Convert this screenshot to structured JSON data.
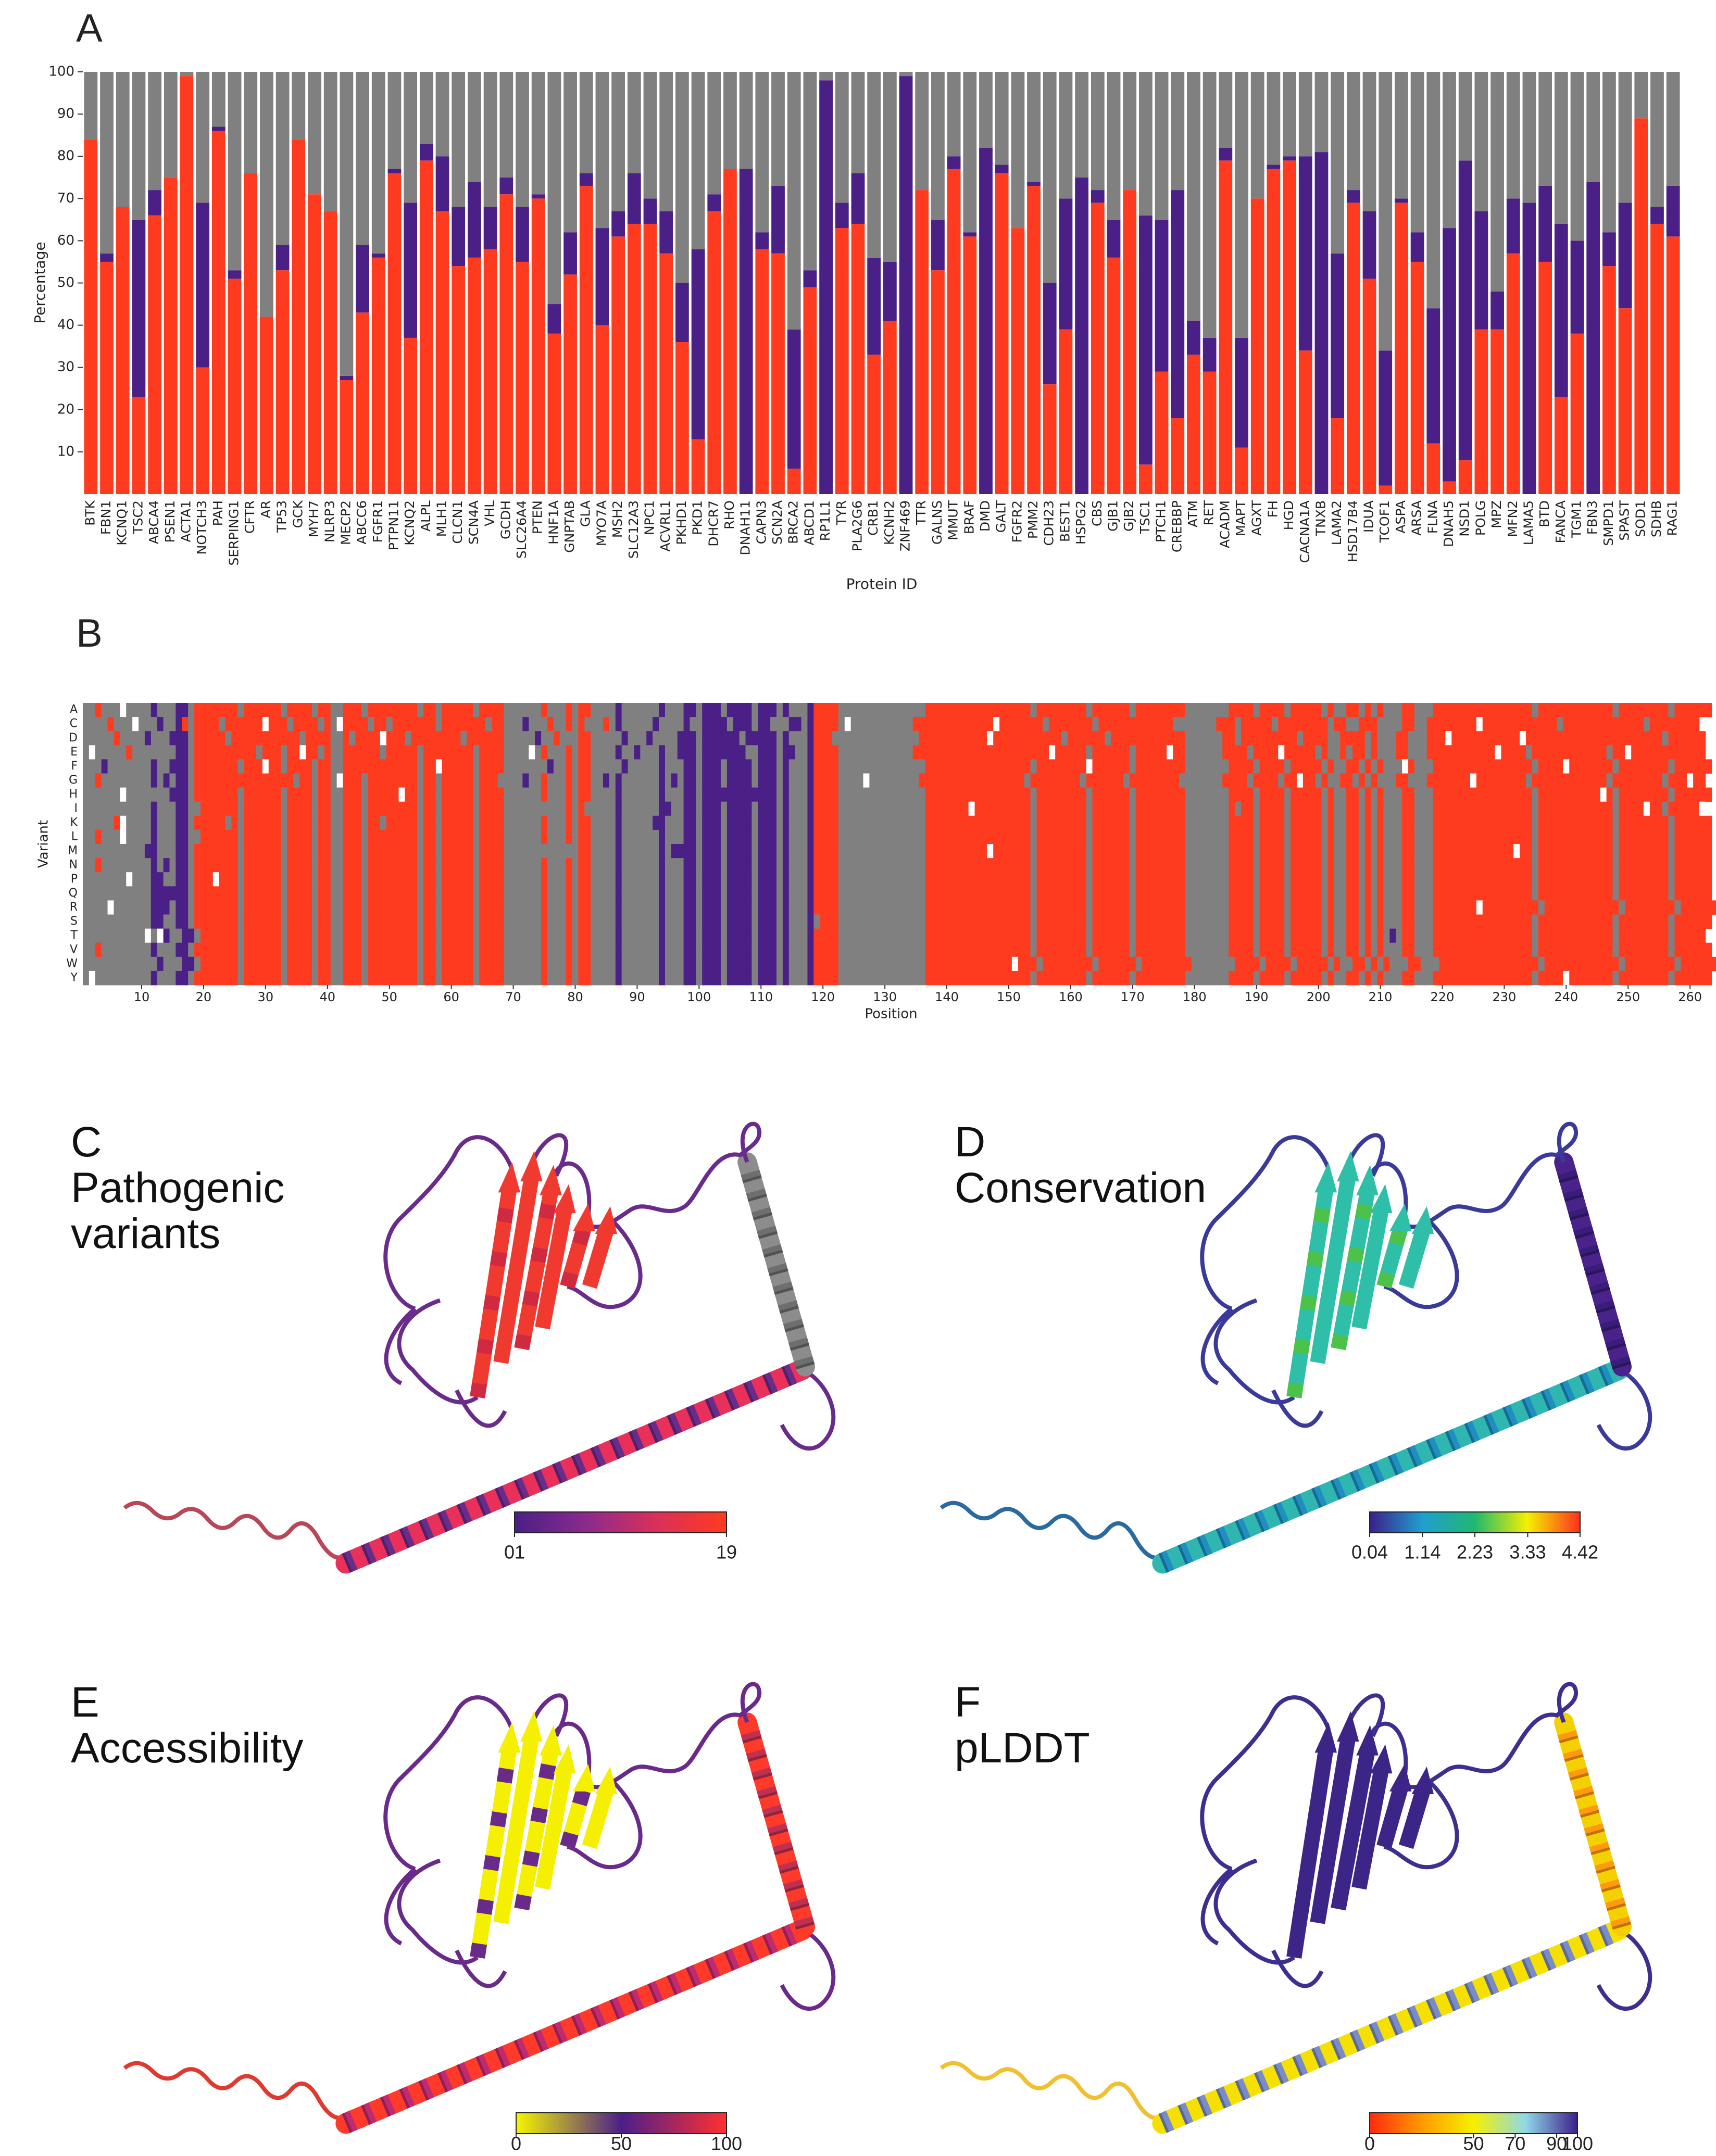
{
  "chart_data": [
    {
      "type": "bar",
      "stacked": true,
      "panel": "A",
      "ylabel": "Percentage",
      "xlabel": "Protein ID",
      "categories": [
        "BTK",
        "FBN1",
        "KCNQ1",
        "TSC2",
        "ABCA4",
        "PSEN1",
        "ACTA1",
        "NOTCH3",
        "PAH",
        "SERPING1",
        "CFTR",
        "AR",
        "TP53",
        "GCK",
        "MYH7",
        "NLRP3",
        "MECP2",
        "ABCC6",
        "FGFR1",
        "PTPN11",
        "KCNQ2",
        "ALPL",
        "MLH1",
        "CLCN1",
        "SCN4A",
        "VHL",
        "GCDH",
        "SLC26A4",
        "PTEN",
        "HNF1A",
        "GNPTAB",
        "GLA",
        "MYO7A",
        "MSH2",
        "SLC12A3",
        "NPC1",
        "ACVRL1",
        "PKHD1",
        "PKD1",
        "DHCR7",
        "RHO",
        "DNAH11",
        "CAPN3",
        "SCN2A",
        "BRCA2",
        "ABCD1",
        "RP1L1",
        "TYR",
        "PLA2G6",
        "CRB1",
        "KCNH2",
        "ZNF469",
        "TTR",
        "GALNS",
        "MMUT",
        "BRAF",
        "DMD",
        "GALT",
        "FGFR2",
        "PMM2",
        "CDH23",
        "BEST1",
        "HSPG2",
        "CBS",
        "GJB1",
        "GJB2",
        "TSC1",
        "PTCH1",
        "CREBBP",
        "ATM",
        "RET",
        "ACADM",
        "MAPT",
        "AGXT",
        "FH",
        "HGD",
        "CACNA1A",
        "TNXB",
        "LAMA2",
        "HSD17B4",
        "IDUA",
        "TCOF1",
        "ASPA",
        "ARSA",
        "FLNA",
        "DNAH5",
        "NSD1",
        "POLG",
        "MPZ",
        "MFN2",
        "LAMA5",
        "BTD",
        "FANCA",
        "TGM1",
        "FBN3",
        "SMPD1",
        "SPAST",
        "SOD1",
        "SDHB",
        "RAG1"
      ],
      "series": [
        {
          "color": "#ff3b1f",
          "values": [
            84,
            55,
            68,
            23,
            66,
            75,
            99,
            30,
            86,
            51,
            76,
            42,
            53,
            84,
            71,
            67,
            27,
            43,
            56,
            76,
            37,
            79,
            67,
            54,
            56,
            58,
            71,
            55,
            70,
            38,
            52,
            73,
            40,
            61,
            64,
            64,
            57,
            36,
            13,
            67,
            77,
            0,
            58,
            57,
            6,
            49,
            0,
            63,
            64,
            33,
            41,
            0,
            72,
            53,
            77,
            61,
            0,
            76,
            63,
            73,
            26,
            39,
            0,
            69,
            56,
            72,
            7,
            29,
            18,
            33,
            29,
            79,
            11,
            70,
            77,
            79,
            34,
            0,
            18,
            69,
            51,
            2,
            69,
            55,
            12,
            3,
            8,
            39,
            39,
            57,
            0,
            55,
            23,
            38,
            0,
            54,
            44,
            89,
            64,
            61
          ]
        },
        {
          "color": "#4a1f86",
          "values": [
            0,
            2,
            0,
            42,
            6,
            0,
            0,
            39,
            1,
            2,
            0,
            0,
            6,
            0,
            0,
            0,
            1,
            16,
            1,
            1,
            32,
            4,
            13,
            14,
            18,
            10,
            4,
            13,
            1,
            7,
            10,
            3,
            23,
            6,
            12,
            6,
            10,
            14,
            45,
            4,
            0,
            77,
            4,
            16,
            33,
            4,
            98,
            6,
            12,
            23,
            14,
            99,
            0,
            12,
            3,
            1,
            82,
            2,
            0,
            1,
            24,
            31,
            75,
            3,
            9,
            0,
            59,
            36,
            54,
            8,
            8,
            3,
            26,
            0,
            1,
            1,
            46,
            81,
            39,
            3,
            16,
            32,
            1,
            7,
            32,
            60,
            71,
            28,
            9,
            13,
            69,
            18,
            41,
            22,
            74,
            8,
            25,
            0,
            4,
            12
          ]
        },
        {
          "color": "#808080",
          "values": [
            16,
            43,
            32,
            35,
            28,
            25,
            1,
            31,
            13,
            47,
            24,
            58,
            41,
            16,
            29,
            33,
            72,
            41,
            43,
            23,
            31,
            17,
            20,
            32,
            26,
            32,
            25,
            32,
            29,
            55,
            38,
            24,
            37,
            33,
            24,
            30,
            33,
            50,
            42,
            29,
            23,
            23,
            38,
            27,
            61,
            47,
            2,
            31,
            24,
            44,
            45,
            1,
            28,
            35,
            20,
            38,
            18,
            22,
            37,
            26,
            50,
            30,
            25,
            28,
            35,
            28,
            34,
            35,
            28,
            59,
            63,
            18,
            63,
            30,
            22,
            20,
            20,
            19,
            43,
            28,
            33,
            66,
            30,
            38,
            56,
            37,
            21,
            33,
            52,
            30,
            31,
            27,
            36,
            40,
            26,
            38,
            31,
            11,
            32,
            27
          ]
        }
      ],
      "ylim": [
        0,
        100
      ],
      "yticks": [
        10,
        20,
        30,
        40,
        50,
        60,
        70,
        80,
        90,
        100
      ]
    },
    {
      "type": "heatmap",
      "panel": "B",
      "xlabel": "Position",
      "ylabel": "Variant",
      "variants": [
        "A",
        "C",
        "D",
        "E",
        "F",
        "G",
        "H",
        "I",
        "K",
        "L",
        "M",
        "N",
        "P",
        "Q",
        "R",
        "S",
        "T",
        "V",
        "W",
        "Y"
      ],
      "palette": {
        "r": "#ff3b1f",
        "p": "#4a1f86",
        "g": "#808080",
        "w": "#ffffff"
      },
      "rows": [
        "ggrgggwggggpgggppgrrrrrrrgrrrrrrgrrrrgrrggrrrgrrrrrrrrgrrgrrrrrgrrrrggggggrgggrgrrggggpggggggpgggppgpppgppppgpppgpgggprrrrggggggggggggggrrrrrrrrrrrrrrrrrgrrrrrrrrgrrrrrrgrrrrrrrrgggggggrrrrgrrrrgrrrrrgrggrrgrgrgggrrgggrrrrrrrrrrrrrrrrgrrrrrrrrrrrrgrrrrrrrrgrrrrrr",
        "ggggrgggwgggpggprgrrrrgrrrrrrwrrrgrrrrgrgwrrrrgrrgrrrrrrrgrrrrrrrgrrgggpgggrggrgrgggrgpgggggpggggpggppppgpppgppgggppgprrrrgwggggggggggrrrrrrrrrrrrrwrrrrrrrgrrrrrrrgrrrrrrrrrrrrgggggggrrrgrrrrrgrrrrrrrrgrrggrrrggggrrggrrrrrrrrwrrrrrrrrrrrrgrrrrrrrrrrrrrgrrrrrrrr",
        "gggggrggggpgggpppgrrrrrgrrrrrrrrrrrgrrrrggrgrrrrwrrrgrrrrrrrrgrrrrrrgggggpggrgggrrgggggpgggpggggpppgppppppgpppppgpgggprrrggggggggggggggrrrrrrrrrrrwrrrrrrrrrrrgrrrrrrgrrrrrrrrrrrrggggggrrgrrrrrrrrrgrrrrggrrrrgrgggrrgggrrrwrrrrrrrrrrrwrrrrrrrrrrrrrrrrrrrrrrgrrrrrr",
        "gwgggggrgggggggppgrrrrrrrrrrgrrrgrrwrrgrggrrrrrrgrrrrrgrrrrrrrrgrrrrggggwgrgggrgrrggggpggpgggpggpppgpppppppggpppgppggprrrrggggggggggggrrrrrrrrrrrrrrrrrrrrrrwrrrrrgrrrrrrgrrrrrwrrggggggrrrrgrrrrwrrrrrgrggrgrrgrgggrrgggrrrrrrrrrrrwrrrrgrrrrrrrrrrrrgrrwrrrrrrrrrrrr",
        "gggpgggggggpggpppgrrrrrrrgrrrwrrgrrrrgrrggrrrrrrrrrrrrgrrwrrrrrgrrrrgggggggpggrgrrgggggpgggggpgggppgpppgppppgpppgpgggprrrrggggggggggggggrrrrrrrrrrrrrrrrrgrrrrrrrrwrrrrrrgrrrrrrrrgggggggrrrrgrrrrgrrrrrgrggrrgrgrgggwrgggrrrrrrrrrrrrrrrrgrrrrwrrrrrrrgrrrrrrrrgrrrrrr",
        "ggrggggggggpgpgppgrrrrrrrrrrrrrrrrgrrgrrgwrrrgrrrrrrrrgrrgrrrrrgrrrggggpggrgggrgrrggpgpggggggpgpgppgpppgppppgpppgpgggprrrrggggwggggggggrrrrrrrrrrrrrrrrrgrrrrrrrrgrrrrrrgrrrrrrrrgggggggrrrrgrrrrgrrwrrgrggrrgrgrgggrrgggrrrrrrrwrrrrrrrrgrrrrrrrrrrrrgrrrrrrrrgrrrwrr",
        "ggggggwgggggggpppgrrrrrrrgrrrrrrgrrrrgrrggrrrgrrrrrwrrgrrgrrrrrgrrrrggggggrgggrgrrggggpggggggpgggppgppppppppppppgpgggprrrrggggggggggggggrrrrrrrrrrrrrrrrrgrrrrrrrrgrrrrrrgrrrrrrrrgggggggrrrrgrrrrgrrrrrgrggrrgrgrgggrrgggrrrrrrrrrrrrrrrrgrrrrrrrrrrwrgrrrrrrrrgrrrrrr",
        "gggggggggggpgggppggrrrrrrgrrrrrrgrrrrgrrggrrrgrrrrrrrrgrrgrrrrrgrrrrggggggggggrgrgggggpggggggppggppgpppgppppgpppgpgggprrrrggggggggggggggrrrrrrrwrrrrrrrrrgrrrrrrrrgrrrrrrgrrrrrrrrgggggggrgrrgrrrrgrrrrrgrggrrgrgrgggrrgggrrrrrrrrrrrrrrrrgrrrrrrrrrrrrgrrrrwrrgrrrrrw",
        "gggggrwggggpgggppgrrrrrgrgrrrrrrgrrrrgrrggrrrgrrgrrrrrgrrgrrrrrgrrrrggggggrgggrgrrggggpgggggppgggppgpppgppppgpppgpgggprrrrggggggggggggggrrrrrrrrrrrrrrrrrgrrrrrrrrgrrrrrrgrrrrrrrrgggggggrrrrgrrrrgrrrrrgrggrrgrgrgggrrgggrrrrrrrrrrrrrrrrgrrrrrrrrrrrrgrrrrrrrrgrrrrrr",
        "ggrgggwggggpgggppggrrrrrrgrrrrrrgrrrrgrrggrrrgrrrrrrrrgrrgrrrrrgrrrrggggggrgggrgrrggggpggggggpgggppgpppgppppgpppgpgggprrrrggggggggggggggrrrrrrrrrrrrrrrrrgrrrrrrrrgrrrrrrgrrrrrrrrgggggggrrrrgrrrrgrrrrrgrggrrgrgrgggrrgggrrrrrrrrrrrrrrrrgrrrrrrrrrrrrgrrrrrrrrgrrrrrr",
        "ggggggggggppgggppgrrrrrrrgrrrrrrgrrrrgrrggrrrgrrrrrrrrgrrgrrrrrgrrrrggggggggggggrrggggpggggggpgppppgpppgppppgpppgpgggprrrrggggggggggggggrrrrrrrrrrwrrrrrrgrrrrrrrrgrrrrrrgrrrrrrrrgggggggrrrrgrrrrgrrrrrgrggrrgrgrgggrrgggrrrrrrrrrrrrrwrrgrrrrrrrrrrrrgrrrrrrrrgrrrrrr",
        "ggrggggggggpgpgppgrrrrrrrgrrrrrrgrrrrgrrggrrrgrrrrrrrrgrrgrrrrrgrrrrggggggrgggrgrrggggpggggggpgggppgpppgppppgpppgpgggprrrrggggggggggggggrrrrrrrrrrrrrrrrrgrrrrrrrrgrrrrrrgrrrrrrrrgggggggrrrrgrrrrgrrrrrgrggrrgrgrgggrrgggrrrrrrrrrrrrrrrrgrrrrrrrrrrrrgrrrrrrrrgrrrrrr",
        "gggggggwgggppggppgrrrwrrrgrrrrrrgrrrrgrrggrrrgrrrrrrrrgrrgrrrrrgrrrrggggggrgggrgrrggggpggggggpgggppgpppgppppgpppgpgggprrrrggggggggggggggrrrrrrrrrrrrrrrrrgrrrrrrrrgrrrrrrgrrrrrrrrgggggggrrrrgrrrrgrrrrrgrggrrgrgrgggrrgggrrrrrrrrrrrrrrrrgrrrrrrrrrrrrgrrrrrrrrgrrrrrr",
        "gggggggggggppppppgrrrrrrrgrrrrrrgrrrrgrrggrrrgrrrrrrrrgrrgrrrrrgrrrrggggggrgggrgrrggggpggggggpgggppgpppgppppgpppgpgggprrrrggggggggggggggrrrrrrrrrrrrrrrrrgrrrrrrrrgrrrrrrgrrrrrrrrgggggggrrrrgrrrrgrrrrrgrggrrgrgrgggrrgggrrrrrrrrrrrrrrrrgrrrrrrrrrrrrgrrrrrrrrgrrrrrr",
        "ggggwggggggpppgppgrrrrrrrgrrrrrrgrrrrgrrggrrrgrrrrrrrrgrrgrrrrrgrrrrggggggrgggrgrrggggpggggggpgggppgpppgppppgpppgpgggprrrrggggggggggggggrrrrrrrrrrrrrrrrrgrrrrrrrrgrrrrrrgrrrrrrrrgggggggrrrrgrrrrgrrrrrgrggrrgrgrgggrrgggrrrrrrrwrrrrrrrrrgrrrrrrrrrrrrgrrrrrrrrgrrrrrr",
        "gggggggggggppggppgrrrrrrrgrrrrrrgrrrrgrrggrrrgrrrrrrrrgrrgrrrrrgrrrrggggggrgggrgrrggggpggggggpgggppgpppgppppgpppgpgggpgrrrggggggggggggggrrrrrrrrrrrrrrrrrgrrrrrrrrgrrrrrrgrrrrrrrrgggggggrrrrgrrrrgrrrrrgrggrrgrgrgggrrgggrrrrrrrrrrrrrrrrgrrrrrrrrrrrrgrrrrrrrrgrrrrrr",
        "ggggggggggwgwpggppgrrrrrrgrrrrrrgrrrrgrrggrrrgrrrrrrrrgrrgrrrrrgrrrrggggggrgggrgrrggggpggggggpgggppgpppgppppgpppgpgggprrrrggggggggggggggrrrrrrrrrrrrrrrrrgrrrrrrrrgrrrrrrgrrrrrrrrgggggggrrrrgrrrrgrrrrrgrggrrgrgrgpgrrgggrrrrrrrrrrrrrrrrgrrrrrrrrrrrrgrrrrrrrrgrrrrr",
        "ggrggggggggpgggppgrrrrrrrgrrrrrrgrrrrgrrggrrrgrrrrrrrrgrrgrrrrrgrrrrggggggrgggrgrrggggpggggggpgggppgpppgppppgpppgpgggprrrrggggggggggggggrrrrrrrrrrrrrrrrrgrrrrrrrrgrrrrrrgrrrrrrrrgggggggrrrrgrrrrgrrrrrgrggrrgrgrgggrrgggrrrrrrrrrrrrrrrrgrrrrrrrrrrrrgrrrrrrrrgrrrrrr",
        "ggggggggggggpgggppgrrrrrrgrrrrrrgrrrrgrrggrrrgrrrrrrrrgrrgrrrrrgrrrrggggggrgggrgrrggggpggggggpgggppgpppgppppgpppgpgggprrrrggggggggggggggrrrrrrrrrrrrrrwrrrgrrrrrrrrgrrrrrrgrrrrrrrrgggggggrrrrgrrrrgrrrrrgrggrrgrgrgggrrgggrrrrrrrrrrrrrrrrgrrrrrrrrrrrrgrrrrrrrrgrrrrrr",
        "gwgggggggggpgggppgrrrrrrrgrrrrrrgrrrrgrrggrrrgrrrrrrrrgrrgrrrrrgrrrrggggggrgggrgrrggggpggggggpgggppgpppgppppgpppgpgggprrrrggggggggggggggrrrrrrrrrrrrrrrrrgrrrrrrrrgrrrrrrgrrrrrrrrgggggggrrrrgrrrrgrrrrrgrggrrgrgrgggrrgggrrrrrrrrrrrrrrrrgrrrrwrrrrrrrgrrrrrrrrgrrrrrr"
      ],
      "xlim": [
        0.5,
        261.5
      ],
      "xticks": [
        10,
        20,
        30,
        40,
        50,
        60,
        70,
        80,
        90,
        100,
        110,
        120,
        130,
        140,
        150,
        160,
        170,
        180,
        190,
        200,
        210,
        220,
        230,
        240,
        250,
        260
      ]
    }
  ],
  "panels": [
    {
      "letter": "C",
      "title": "Pathogenic variants",
      "colorbar": {
        "lim": [
          1,
          19
        ],
        "ticks": [
          {
            "value": 1,
            "label": "01"
          },
          19
        ],
        "colors": [
          "#4a1f86",
          "#8a2a8c",
          "#d9305a",
          "#ff3b1f"
        ]
      }
    },
    {
      "letter": "D",
      "title": "Conservation",
      "colorbar": {
        "lim": [
          0.04,
          4.42
        ],
        "ticks": [
          0.04,
          1.14,
          2.23,
          3.33,
          4.42
        ],
        "colors": [
          "#3b1f8a",
          "#1f9fd0",
          "#20b870",
          "#f5f000",
          "#ff3020"
        ]
      }
    },
    {
      "letter": "E",
      "title": "Accessibility",
      "colorbar": {
        "lim": [
          0,
          100
        ],
        "ticks": [
          0,
          50,
          100
        ],
        "colors": [
          "#f5f500",
          "#4b1f8a",
          "#ff3030"
        ]
      }
    },
    {
      "letter": "F",
      "title": "pLDDT",
      "colorbar": {
        "lim": [
          0,
          100
        ],
        "ticks": [
          0,
          50,
          70,
          90,
          100
        ],
        "colors": [
          "#ff2a10",
          "#ff9a00",
          "#f5f000",
          "#90d8e8",
          "#3b1f8a"
        ]
      }
    }
  ]
}
